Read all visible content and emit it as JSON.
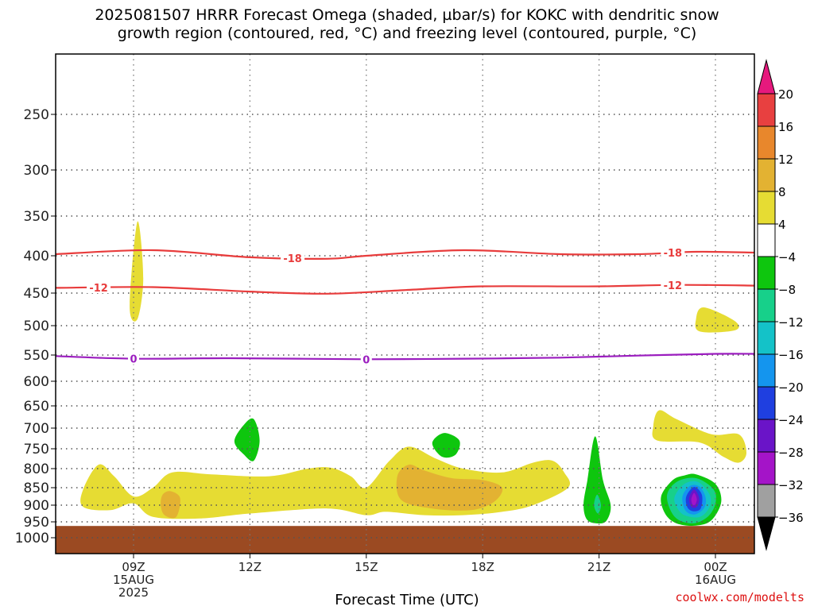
{
  "title": "2025081507 HRRR Forecast Omega (shaded, µbar/s) for KOKC with dendritic snow\ngrowth region (contoured, red, °C) and freezing level (contoured, purple, °C)",
  "credit": "coolwx.com/modelts",
  "chart_data": {
    "type": "heatmap",
    "xlabel": "Forecast Time (UTC)",
    "ylabel": "",
    "x_ticks": [
      {
        "label": "09Z",
        "sub": [
          "15AUG",
          "2025"
        ],
        "hour": 9
      },
      {
        "label": "12Z",
        "sub": [],
        "hour": 12
      },
      {
        "label": "15Z",
        "sub": [],
        "hour": 15
      },
      {
        "label": "18Z",
        "sub": [],
        "hour": 18
      },
      {
        "label": "21Z",
        "sub": [],
        "hour": 21
      },
      {
        "label": "00Z",
        "sub": [
          "16AUG"
        ],
        "hour": 24
      }
    ],
    "x_range_hours": [
      7,
      25
    ],
    "y_ticks": [
      250,
      300,
      350,
      400,
      450,
      500,
      550,
      600,
      650,
      700,
      750,
      800,
      850,
      900,
      950,
      1000
    ],
    "y_range_hpa": [
      200,
      1050
    ],
    "ground_pressure_hpa": 963,
    "ground_color": "#9b4a22",
    "colorbar": {
      "labels": [
        "20",
        "16",
        "12",
        "8",
        "4",
        "−4",
        "−8",
        "−12",
        "−16",
        "−20",
        "−24",
        "−28",
        "−32",
        "−36"
      ],
      "colors": [
        "#e6197d",
        "#e84040",
        "#e8872c",
        "#e3b232",
        "#e6dc33",
        "#ffffff",
        "#0ec60e",
        "#17d08a",
        "#14c2c8",
        "#1495ee",
        "#1f3fe0",
        "#6a14c8",
        "#a414c8",
        "#a0a0a0",
        "#000000"
      ]
    },
    "contours": [
      {
        "name": "dendritic-minus18",
        "label": "-18",
        "color": "#e83c3c",
        "points": [
          [
            7,
            398
          ],
          [
            9.5,
            393
          ],
          [
            12,
            402
          ],
          [
            14,
            404
          ],
          [
            15,
            400
          ],
          [
            17.5,
            393
          ],
          [
            20,
            398
          ],
          [
            22,
            398
          ],
          [
            23.5,
            395
          ],
          [
            25,
            396
          ]
        ],
        "label_hours": [
          13.1,
          22.9
        ]
      },
      {
        "name": "dendritic-minus12",
        "label": "-12",
        "color": "#e83c3c",
        "points": [
          [
            7,
            443
          ],
          [
            9.5,
            442
          ],
          [
            12,
            448
          ],
          [
            14,
            451
          ],
          [
            16,
            446
          ],
          [
            18,
            441
          ],
          [
            21,
            441
          ],
          [
            23,
            439
          ],
          [
            25,
            440
          ]
        ],
        "label_hours": [
          8.1,
          22.9
        ]
      },
      {
        "name": "freezing-level-0",
        "label": "0",
        "color": "#9b1dbf",
        "points": [
          [
            7,
            552
          ],
          [
            9,
            557
          ],
          [
            11.5,
            556
          ],
          [
            15,
            558
          ],
          [
            17.5,
            557
          ],
          [
            20,
            555
          ],
          [
            22,
            551
          ],
          [
            24,
            548
          ],
          [
            25,
            548
          ]
        ],
        "label_hours": [
          9,
          15
        ]
      }
    ],
    "regions": [
      {
        "name": "yellow-upper-09z",
        "value": "4 to 8",
        "color": "#e6dc33",
        "points": [
          [
            8.9,
            470
          ],
          [
            9.1,
            357
          ],
          [
            9.25,
            430
          ],
          [
            9.1,
            490
          ]
        ]
      },
      {
        "name": "yellow-upper-right",
        "value": "4 to 8",
        "color": "#e6dc33",
        "points": [
          [
            23.5,
            490
          ],
          [
            23.7,
            472
          ],
          [
            24.5,
            493
          ],
          [
            24.5,
            508
          ],
          [
            23.6,
            510
          ]
        ]
      },
      {
        "name": "yellow-lowlevel-main",
        "value": "4 to 8",
        "color": "#e6dc33",
        "points": [
          [
            7.7,
            855
          ],
          [
            8.1,
            790
          ],
          [
            8.5,
            820
          ],
          [
            9,
            875
          ],
          [
            9.5,
            850
          ],
          [
            10,
            810
          ],
          [
            11,
            815
          ],
          [
            12.5,
            820
          ],
          [
            13.5,
            800
          ],
          [
            14.1,
            798
          ],
          [
            14.6,
            820
          ],
          [
            15,
            850
          ],
          [
            15.6,
            780
          ],
          [
            16.1,
            745
          ],
          [
            16.8,
            775
          ],
          [
            17.5,
            800
          ],
          [
            18.5,
            810
          ],
          [
            19.3,
            785
          ],
          [
            19.8,
            780
          ],
          [
            20.1,
            810
          ],
          [
            20.2,
            850
          ],
          [
            19.3,
            900
          ],
          [
            18.5,
            920
          ],
          [
            17.5,
            930
          ],
          [
            16.5,
            930
          ],
          [
            15.5,
            920
          ],
          [
            15,
            930
          ],
          [
            14,
            910
          ],
          [
            12,
            925
          ],
          [
            10.7,
            940
          ],
          [
            9.5,
            935
          ],
          [
            9,
            895
          ],
          [
            8.4,
            915
          ],
          [
            7.7,
            905
          ]
        ]
      },
      {
        "name": "orange-lowlevel-1",
        "value": "8 to 12",
        "color": "#e3b232",
        "points": [
          [
            9.75,
            870
          ],
          [
            9.95,
            860
          ],
          [
            10.2,
            880
          ],
          [
            10.1,
            935
          ],
          [
            9.8,
            930
          ],
          [
            9.7,
            900
          ]
        ]
      },
      {
        "name": "orange-lowlevel-2",
        "value": "8 to 12",
        "color": "#e3b232",
        "points": [
          [
            15.8,
            820
          ],
          [
            16.1,
            790
          ],
          [
            16.5,
            805
          ],
          [
            17.2,
            825
          ],
          [
            18,
            830
          ],
          [
            18.5,
            850
          ],
          [
            18.3,
            890
          ],
          [
            17.7,
            915
          ],
          [
            16.7,
            910
          ],
          [
            15.9,
            885
          ]
        ]
      },
      {
        "name": "green-12z",
        "value": "-4 to -8",
        "color": "#0ec60e",
        "points": [
          [
            11.6,
            732
          ],
          [
            11.85,
            692
          ],
          [
            12.1,
            680
          ],
          [
            12.25,
            730
          ],
          [
            12.1,
            780
          ],
          [
            11.85,
            765
          ]
        ]
      },
      {
        "name": "green-17z",
        "value": "-4 to -8",
        "color": "#0ec60e",
        "points": [
          [
            16.7,
            736
          ],
          [
            17.0,
            712
          ],
          [
            17.4,
            730
          ],
          [
            17.3,
            765
          ],
          [
            16.95,
            770
          ]
        ]
      },
      {
        "name": "yellow-2230-slant",
        "value": "4 to 8",
        "color": "#e6dc33",
        "points": [
          [
            22.4,
            695
          ],
          [
            22.55,
            660
          ],
          [
            23,
            680
          ],
          [
            23.9,
            715
          ],
          [
            24.6,
            715
          ],
          [
            24.8,
            760
          ],
          [
            24.6,
            785
          ],
          [
            24.2,
            770
          ],
          [
            23.6,
            735
          ],
          [
            22.5,
            730
          ]
        ]
      },
      {
        "name": "green-21z",
        "value": "-4 to -8",
        "color": "#0ec60e",
        "points": [
          [
            20.6,
            900
          ],
          [
            20.7,
            830
          ],
          [
            20.9,
            720
          ],
          [
            21.1,
            830
          ],
          [
            21.3,
            900
          ],
          [
            21.2,
            945
          ],
          [
            21.0,
            955
          ],
          [
            20.7,
            945
          ]
        ]
      },
      {
        "name": "teal-21z",
        "value": "-8 to -12",
        "color": "#17d08a",
        "points": [
          [
            20.87,
            900
          ],
          [
            20.95,
            870
          ],
          [
            21.05,
            900
          ],
          [
            20.97,
            925
          ]
        ]
      },
      {
        "name": "green-23z-ring",
        "value": "-4 to -8",
        "color": "#0ec60e",
        "points": [
          [
            22.6,
            875
          ],
          [
            22.9,
            830
          ],
          [
            23.2,
            818
          ],
          [
            23.5,
            815
          ],
          [
            24.0,
            840
          ],
          [
            24.15,
            890
          ],
          [
            23.9,
            945
          ],
          [
            23.5,
            962
          ],
          [
            23.0,
            955
          ],
          [
            22.7,
            925
          ]
        ]
      },
      {
        "name": "teal-23z-ring",
        "value": "-8 to -12",
        "color": "#17d08a",
        "points": [
          [
            22.75,
            875
          ],
          [
            23.0,
            835
          ],
          [
            23.5,
            825
          ],
          [
            23.95,
            855
          ],
          [
            24.0,
            895
          ],
          [
            23.8,
            935
          ],
          [
            23.4,
            955
          ],
          [
            22.95,
            935
          ]
        ]
      },
      {
        "name": "cyan-23z-ring",
        "value": "-12 to -16",
        "color": "#14c2c8",
        "points": [
          [
            22.95,
            875
          ],
          [
            23.2,
            840
          ],
          [
            23.55,
            835
          ],
          [
            23.85,
            870
          ],
          [
            23.85,
            905
          ],
          [
            23.6,
            935
          ],
          [
            23.2,
            930
          ],
          [
            23.0,
            905
          ]
        ]
      },
      {
        "name": "blue-23z-ring",
        "value": "-16 to -20",
        "color": "#1495ee",
        "points": [
          [
            23.15,
            875
          ],
          [
            23.35,
            845
          ],
          [
            23.6,
            848
          ],
          [
            23.75,
            880
          ],
          [
            23.7,
            910
          ],
          [
            23.45,
            928
          ],
          [
            23.22,
            915
          ]
        ]
      },
      {
        "name": "darkblue-23z",
        "value": "-20 to -24",
        "color": "#1f3fe0",
        "points": [
          [
            23.25,
            875
          ],
          [
            23.45,
            848
          ],
          [
            23.65,
            870
          ],
          [
            23.62,
            910
          ],
          [
            23.42,
            918
          ],
          [
            23.27,
            905
          ]
        ]
      },
      {
        "name": "purple-23z",
        "value": "-24 to -28",
        "color": "#6a14c8",
        "points": [
          [
            23.32,
            880
          ],
          [
            23.45,
            855
          ],
          [
            23.58,
            880
          ],
          [
            23.52,
            905
          ],
          [
            23.38,
            905
          ]
        ]
      },
      {
        "name": "magenta-23z-core",
        "value": "-28 to -32",
        "color": "#a414c8",
        "points": [
          [
            23.38,
            882
          ],
          [
            23.45,
            865
          ],
          [
            23.52,
            882
          ],
          [
            23.48,
            898
          ],
          [
            23.41,
            898
          ]
        ]
      }
    ]
  }
}
